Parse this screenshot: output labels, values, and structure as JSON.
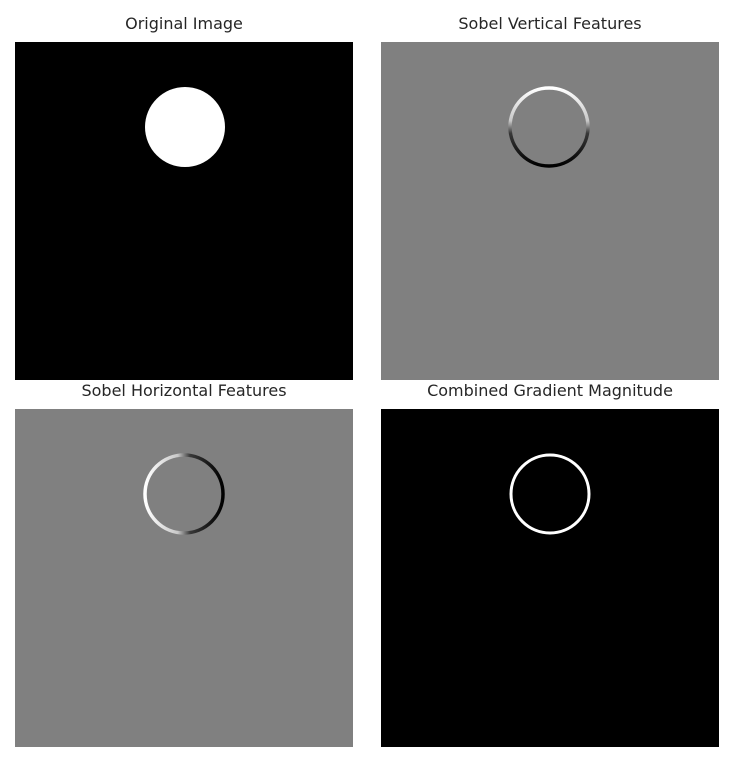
{
  "figure": {
    "panels": [
      {
        "title": "Original Image",
        "kind": "original",
        "background": "#000000"
      },
      {
        "title": "Sobel Vertical Features",
        "kind": "sobel-vertical",
        "background": "#808080"
      },
      {
        "title": "Sobel Horizontal Features",
        "kind": "sobel-horizontal",
        "background": "#808080"
      },
      {
        "title": "Combined Gradient Magnitude",
        "kind": "magnitude",
        "background": "#000000"
      }
    ],
    "colors": {
      "black": "#000000",
      "gray": "#808080",
      "white": "#ffffff"
    }
  }
}
